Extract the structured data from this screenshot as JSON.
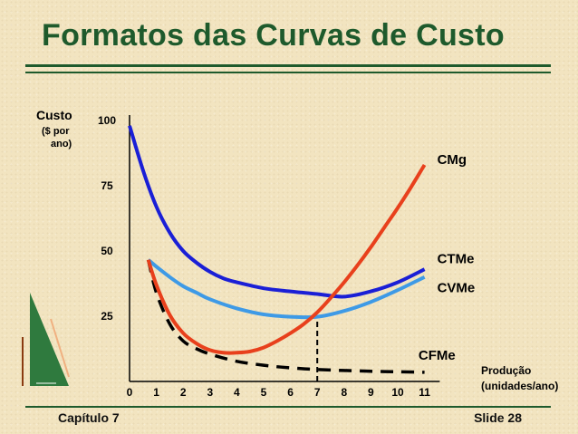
{
  "slide": {
    "title": "Formatos das Curvas de Custo",
    "footer_left": "Capítulo 7",
    "footer_right": "Slide 28",
    "colors": {
      "title": "#1e5a2c",
      "background": "#f2e4c0"
    }
  },
  "chart_data": {
    "type": "line",
    "title": "",
    "ylabel": [
      "Custo",
      "($ por",
      "ano)"
    ],
    "xlabel": [
      "Produção",
      "(unidades/ano)"
    ],
    "xlim": [
      0,
      11.5
    ],
    "ylim": [
      0,
      100
    ],
    "x_ticks": [
      0,
      1,
      2,
      3,
      4,
      5,
      6,
      7,
      8,
      9,
      10,
      11
    ],
    "y_ticks": [
      25,
      50,
      75,
      100
    ],
    "grid": false,
    "legend": "inline labels at right end of each curve",
    "series": [
      {
        "name": "CMg",
        "color": "#e8401c",
        "dash": false,
        "x": [
          0.7,
          1.0,
          1.5,
          2.0,
          2.5,
          3.0,
          3.5,
          4.0,
          4.5,
          5.0,
          5.5,
          6.0,
          6.5,
          7.0,
          7.5,
          8.0,
          8.5,
          9.0,
          9.5,
          10.0,
          10.5,
          11.0
        ],
        "values": [
          46.6,
          37,
          25.5,
          18.5,
          14.5,
          12,
          11,
          11,
          11.5,
          13,
          15.5,
          18.5,
          22,
          26.5,
          32,
          38,
          44.5,
          51.5,
          59,
          66.5,
          74.5,
          83
        ]
      },
      {
        "name": "CTMe",
        "color": "#1a1fd6",
        "dash": false,
        "x": [
          0.0,
          0.5,
          1.0,
          1.5,
          2.0,
          2.5,
          3.0,
          3.5,
          4.0,
          5.0,
          6.0,
          7.0,
          8.0,
          9.0,
          10.0,
          11.0
        ],
        "values": [
          98,
          81,
          67,
          57,
          50,
          45.5,
          42,
          39.5,
          38,
          35.7,
          34.5,
          33.5,
          32.5,
          34.5,
          38,
          43
        ]
      },
      {
        "name": "CVMe",
        "color": "#3e9ae6",
        "dash": false,
        "x": [
          0.7,
          1.0,
          1.5,
          2.0,
          2.5,
          3.0,
          4.0,
          5.0,
          6.0,
          7.0,
          8.0,
          9.0,
          10.0,
          11.0
        ],
        "values": [
          46.6,
          44,
          40,
          36.5,
          34,
          31.5,
          28,
          25.7,
          24.8,
          24.8,
          27,
          30.5,
          35,
          40
        ]
      },
      {
        "name": "CFMe",
        "color": "#000000",
        "dash": true,
        "x": [
          0.7,
          1.0,
          1.5,
          2.0,
          2.5,
          3.0,
          4.0,
          5.0,
          6.0,
          7.0,
          8.0,
          9.0,
          10.0,
          11.0
        ],
        "values": [
          46.6,
          34,
          22,
          15.5,
          12.5,
          10.5,
          7.7,
          6.2,
          5.2,
          4.6,
          4.2,
          3.9,
          3.7,
          3.5
        ]
      }
    ],
    "label_positions": {
      "CMg": [
        11.0,
        85
      ],
      "CTMe": [
        11.0,
        47
      ],
      "CVMe": [
        11.0,
        36
      ],
      "CFMe": [
        10.3,
        10
      ]
    },
    "annotations": [
      {
        "type": "vertical-dashed",
        "x": 7.0,
        "from": 0,
        "to": 24.8
      }
    ]
  }
}
